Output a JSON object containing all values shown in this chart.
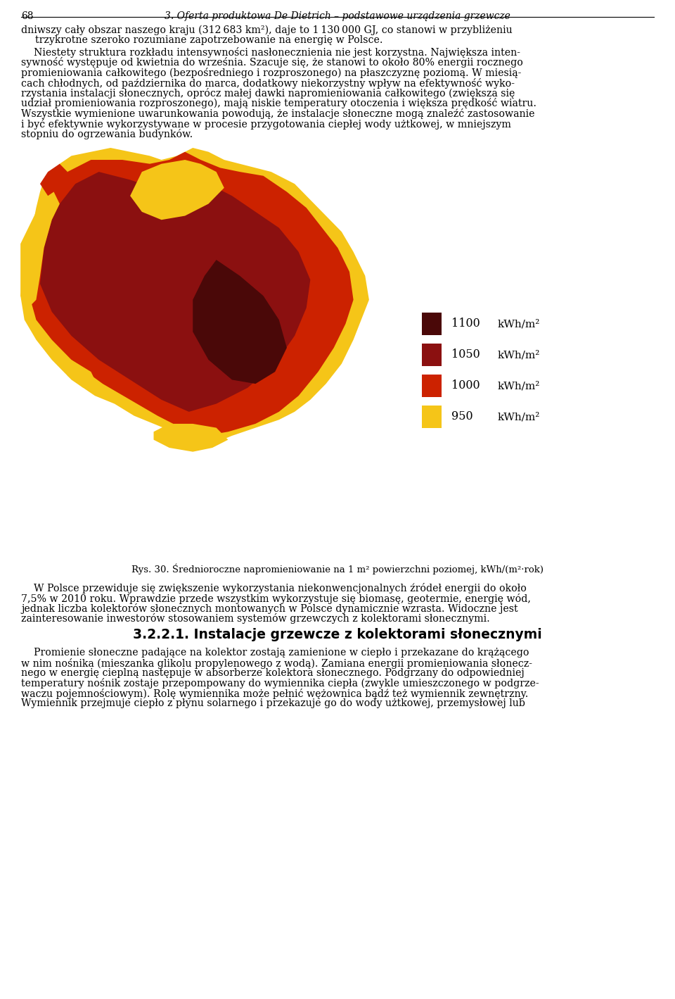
{
  "page_number": "68",
  "header_text": "3. Oferta produktowa De Dietrich – podstawowe urządzenia grzewcze",
  "intro_line1": "dniwszy cały obszar naszego kraju (312 683 km²), daje to 1 130 000 GJ, co stanowi w przybliżeniu",
  "intro_line2": "trzykrotne szeroko rozumiane zapotrzebowanie na energię w Polsce.",
  "para1_lines": [
    "    Niestety struktura rozkładu intensywności nasłonecznienia nie jest korzystna. Największa inten-",
    "sywność występuje od kwietnia do września. Szacuje się, że stanowi to około 80% energii rocznego",
    "promieniowania całkowitego (bezpośredniego i rozproszonego) na płaszczyznę poziomą. W miesią-",
    "cach chłodnych, od października do marca, dodatkowy niekorzystny wpływ na efektywność wyko-",
    "rzystania instalacji słonecznych, oprócz małej dawki napromieniowania całkowitego (zwiększa się",
    "udział promieniowania rozproszonego), mają niskie temperatury otoczenia i większa prędkość wiatru.",
    "Wszystkie wymienione uwarunkowania powodują, że instalacje słoneczne mogą znaleźć zastosowanie",
    "i być efektywnie wykorzystywane w procesie przygotowania ciepłej wody użtkowej, w mniejszym",
    "stopniu do ogrzewania budynków."
  ],
  "legend_items": [
    {
      "value": "950",
      "color": "#F5C518"
    },
    {
      "value": "1000",
      "color": "#CC2200"
    },
    {
      "value": "1050",
      "color": "#8B1010"
    },
    {
      "value": "1100",
      "color": "#4A0808"
    }
  ],
  "caption": "Rys. 30. Średnioroczne napromieniowanie na 1 m² powierzchni poziomej, kWh/(m²·rok)",
  "para2_lines": [
    "    W Polsce przewiduje się zwiększenie wykorzystania niekonwencjonalnych źródeł energii do około",
    "7,5% w 2010 roku. Wprawdzie przede wszystkim wykorzystuje się biomasę, geotermie, energię wód,",
    "jednak liczba kolektorów słonecznych montowanych w Polsce dynamicznie wzrasta. Widoczne jest",
    "zainteresowanie inwestorów stosowaniem systemów grzewczych z kolektorami słonecznymi."
  ],
  "section_title": "3.2.2.1. Instalacje grzewcze z kolektorami słonecznymi",
  "para3_lines": [
    "    Promienie słoneczne padające na kolektor zostają zamienione w ciepło i przekazane do krążącego",
    "w nim nośnika (mieszanka glikolu propylenowego z wodą). Zamiana energii promieniowania słonecz-",
    "nego w energię cieplną następuje w absorberze kolektora słonecznego. Podgrzany do odpowiedniej",
    "temperatury nośnik zostaje przepompowany do wymiennika ciepła (zwykle umieszczonego w podgrze-",
    "waczu pojemnościowym). Rolę wymiennika może pełnić wężownica bądź też wymiennik zewnętrzny.",
    "Wymiennik przejmuje ciepło z płynu solarnego i przekazuje go do wody użtkowej, przemysłowej lub"
  ],
  "bg_color": "#FFFFFF",
  "map_yellow": "#F5C518",
  "map_red": "#CC2200",
  "map_dark_red": "#8B1010",
  "map_darkest": "#4A0808"
}
